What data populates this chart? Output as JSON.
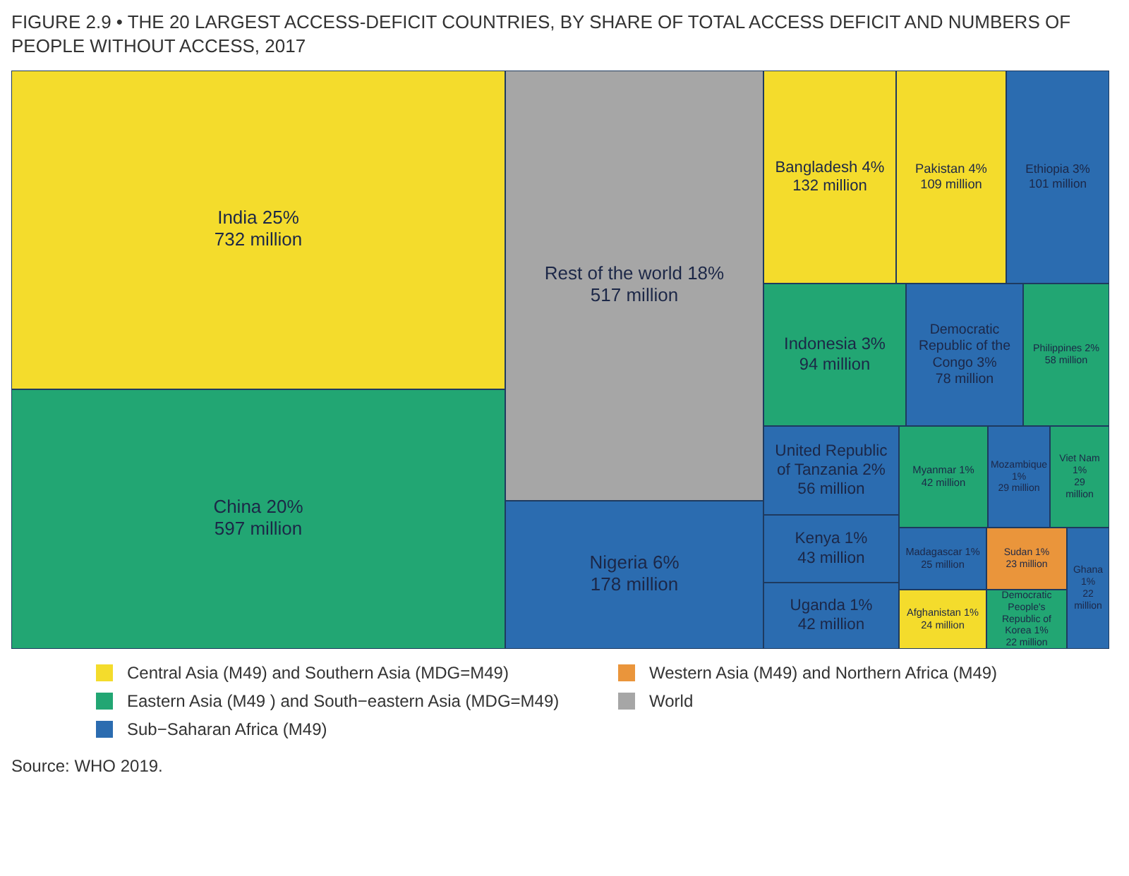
{
  "chart_data": {
    "type": "other",
    "title": "FIGURE 2.9 • THE 20 LARGEST ACCESS-DEFICIT COUNTRIES, BY SHARE OF TOTAL ACCESS DEFICIT AND NUMBERS OF PEOPLE WITHOUT ACCESS, 2017",
    "categories": [
      "India 25%",
      "China 20%",
      "Rest of the world 18%",
      "Nigeria 6%",
      "Bangladesh 4%",
      "Pakistan 4%",
      "Ethiopia 3%",
      "Indonesia 3%",
      "Democratic Republic of the Congo 3%",
      "Philippines 2%",
      "United Republic of Tanzania 2%",
      "Kenya 1%",
      "Uganda 1%",
      "Myanmar 1%",
      "Mozambique 1%",
      "Viet Nam 1%",
      "Madagascar 1%",
      "Afghanistan 1%",
      "Sudan 1%",
      "Democratic People's Republic of Korea 1%",
      "Ghana 1%"
    ],
    "series": [
      {
        "name": "Central Asia (M49) and Southern Asia (MDG=M49)",
        "color": "#f4dc2c",
        "values": [
          732,
          null,
          null,
          null,
          132,
          109,
          null,
          null,
          null,
          null,
          null,
          null,
          null,
          null,
          null,
          null,
          null,
          24,
          null,
          null,
          null
        ],
        "value_labels": [
          "732 million",
          null,
          null,
          null,
          "132 million",
          "109 million",
          null,
          null,
          null,
          null,
          null,
          null,
          null,
          null,
          null,
          null,
          null,
          "24 million",
          null,
          null,
          null
        ]
      },
      {
        "name": "Eastern Asia (M49 ) and South−eastern Asia (MDG=M49)",
        "color": "#22a673",
        "values": [
          null,
          597,
          null,
          null,
          null,
          null,
          null,
          94,
          null,
          58,
          null,
          null,
          null,
          42,
          null,
          29,
          null,
          null,
          null,
          22,
          null
        ],
        "value_labels": [
          null,
          "597 million",
          null,
          null,
          null,
          null,
          null,
          "94 million",
          null,
          "58 million",
          null,
          null,
          null,
          "42 million",
          null,
          "29 million",
          null,
          null,
          null,
          "22 million",
          null
        ]
      },
      {
        "name": "Sub−Saharan Africa (M49)",
        "color": "#2b6cb0",
        "values": [
          null,
          null,
          null,
          178,
          null,
          null,
          101,
          null,
          78,
          null,
          56,
          43,
          42,
          null,
          29,
          null,
          25,
          null,
          null,
          null,
          22
        ],
        "value_labels": [
          null,
          null,
          null,
          "178 million",
          null,
          null,
          "101 million",
          null,
          "78 million",
          null,
          "56 million",
          "43 million",
          "42 million",
          null,
          "29 million",
          null,
          "25 million",
          null,
          null,
          null,
          "22 million"
        ]
      },
      {
        "name": "Western Asia  (M49) and Northern Africa (M49)",
        "color": "#ea953b",
        "values": [
          null,
          null,
          null,
          null,
          null,
          null,
          null,
          null,
          null,
          null,
          null,
          null,
          null,
          null,
          null,
          null,
          null,
          null,
          23,
          null,
          null
        ],
        "value_labels": [
          null,
          null,
          null,
          null,
          null,
          null,
          null,
          null,
          null,
          null,
          null,
          null,
          null,
          null,
          null,
          null,
          null,
          null,
          "23 million",
          null,
          null
        ]
      },
      {
        "name": "World",
        "color": "#a6a6a6",
        "values": [
          null,
          null,
          517,
          null,
          null,
          null,
          null,
          null,
          null,
          null,
          null,
          null,
          null,
          null,
          null,
          null,
          null,
          null,
          null,
          null,
          null
        ],
        "value_labels": [
          null,
          null,
          "517 million",
          null,
          null,
          null,
          null,
          null,
          null,
          null,
          null,
          null,
          null,
          null,
          null,
          null,
          null,
          null,
          null,
          null,
          null
        ]
      }
    ],
    "legend": "bottom",
    "annotations": [
      "Source: WHO 2019."
    ]
  }
}
